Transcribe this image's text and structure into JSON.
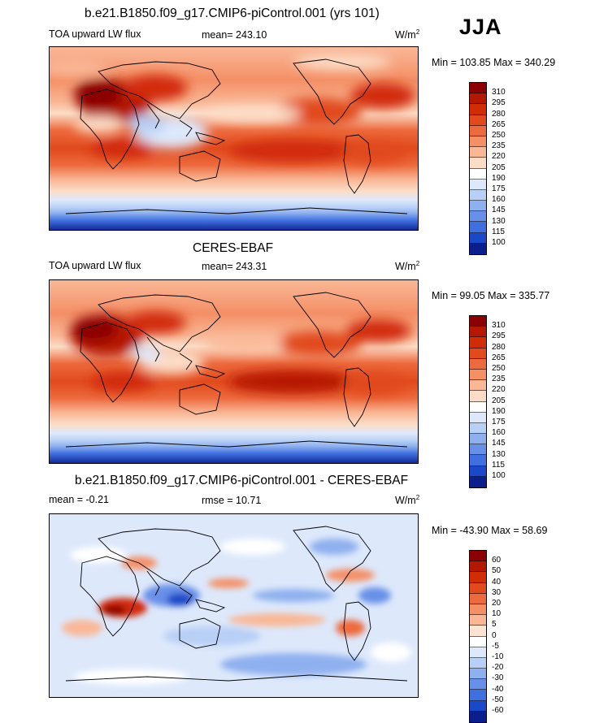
{
  "season": "JJA",
  "panels": [
    {
      "id": "model",
      "title": "b.e21.B1850.f09_g17.CMIP6-piControl.001 (yrs 101)",
      "left_label": "TOA upward LW flux",
      "mid_label": "mean= 243.10",
      "unit_base": "W/m",
      "unit_exp": "2",
      "minmax": "Min = 103.85 Max = 340.29"
    },
    {
      "id": "obs",
      "title": "CERES-EBAF",
      "left_label": "TOA upward LW flux",
      "mid_label": "mean= 243.31",
      "unit_base": "W/m",
      "unit_exp": "2",
      "minmax": "Min =  99.05 Max = 335.77"
    },
    {
      "id": "diff",
      "title": "b.e21.B1850.f09_g17.CMIP6-piControl.001 - CERES-EBAF",
      "left_label": "mean =  -0.21",
      "mid_label": "rmse =  10.71",
      "unit_base": "W/m",
      "unit_exp": "2",
      "minmax": "Min = -43.90 Max =  58.69"
    }
  ],
  "colorbar_abs": {
    "levels": [
      "310",
      "295",
      "280",
      "265",
      "250",
      "235",
      "220",
      "205",
      "190",
      "175",
      "160",
      "145",
      "130",
      "115",
      "100"
    ],
    "colors": [
      "#8b0000",
      "#b51800",
      "#d12c08",
      "#e14a1c",
      "#ed6a3e",
      "#f48f66",
      "#f9b796",
      "#fcdcc6",
      "#ffffff",
      "#dde8fb",
      "#b8cff6",
      "#8fb0ef",
      "#6890e8",
      "#4070e0",
      "#1a48c8",
      "#0a1f8c"
    ]
  },
  "colorbar_diff": {
    "levels": [
      "60",
      "50",
      "40",
      "30",
      "20",
      "10",
      "5",
      "0",
      "-5",
      "-10",
      "-20",
      "-30",
      "-40",
      "-50",
      "-60"
    ],
    "colors": [
      "#8b0000",
      "#b51800",
      "#d12c08",
      "#e14a1c",
      "#ed6a3e",
      "#f48f66",
      "#f9b796",
      "#fce3d2",
      "#ffffff",
      "#dde8fb",
      "#b8cff6",
      "#8fb0ef",
      "#6890e8",
      "#4070e0",
      "#1a48c8",
      "#0a1f8c"
    ]
  }
}
